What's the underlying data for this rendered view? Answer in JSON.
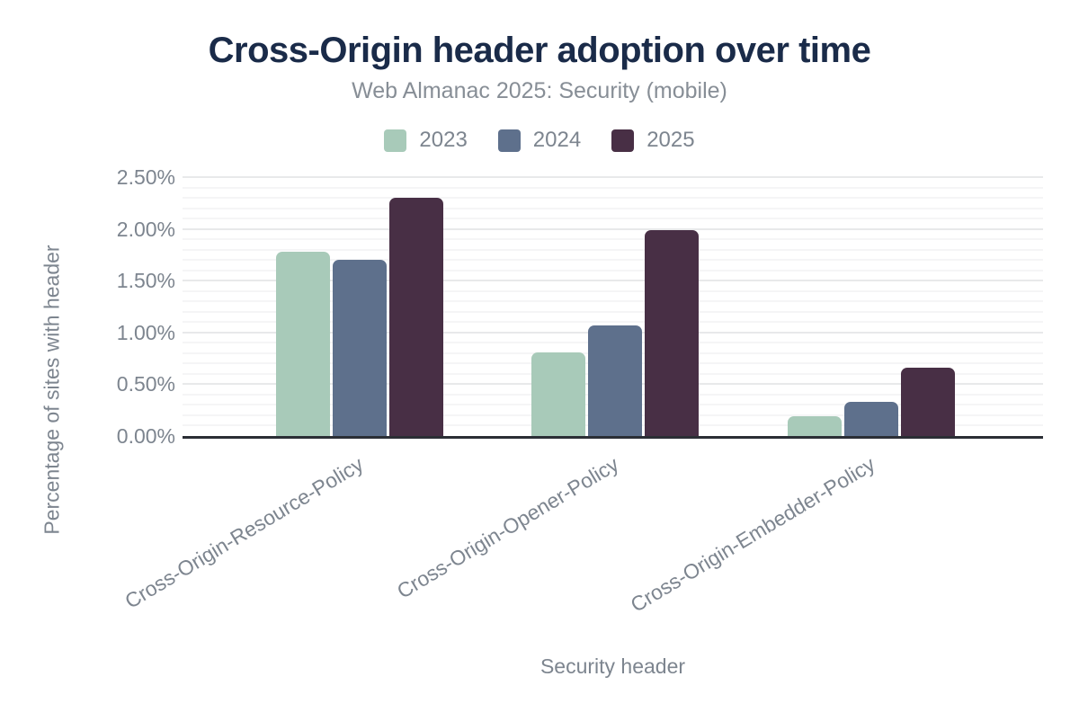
{
  "header": {
    "title": "Cross-Origin header adoption over time",
    "subtitle": "Web Almanac 2025: Security (mobile)"
  },
  "colors": {
    "title_text": "#1a2b49",
    "subtitle_text": "#878e96",
    "axis_text": "#7d858f",
    "axis_line": "#2b2e35",
    "grid_minor": "#f5f5f6",
    "grid_major": "#e8e9ea",
    "background": "#ffffff"
  },
  "chart_data": {
    "type": "bar",
    "title": "Cross-Origin header adoption over time",
    "subtitle": "Web Almanac 2025: Security (mobile)",
    "categories": [
      "Cross-Origin-Resource-Policy",
      "Cross-Origin-Opener-Policy",
      "Cross-Origin-Embedder-Policy"
    ],
    "series": [
      {
        "name": "2023",
        "color": "#a8cab9",
        "values": [
          1.78,
          0.81,
          0.19
        ]
      },
      {
        "name": "2024",
        "color": "#5e708c",
        "values": [
          1.7,
          1.07,
          0.33
        ]
      },
      {
        "name": "2025",
        "color": "#482f45",
        "values": [
          2.3,
          1.99,
          0.66
        ]
      }
    ],
    "xlabel": "Security header",
    "ylabel": "Percentage of sites with header",
    "ylim": [
      0,
      2.5
    ],
    "ytick_step": 0.5,
    "ytick_minor_step": 0.1,
    "ytick_labels": [
      "0.00%",
      "0.50%",
      "1.00%",
      "1.50%",
      "2.00%",
      "2.50%"
    ],
    "legend_position": "top",
    "grid": true
  }
}
